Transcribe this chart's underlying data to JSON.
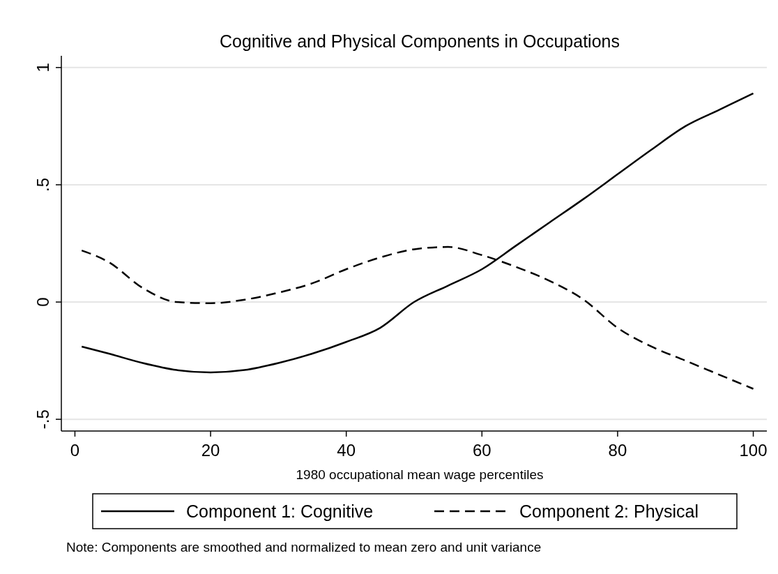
{
  "chart_data": {
    "type": "line",
    "title": "Cognitive and Physical Components in Occupations",
    "xlabel": "1980 occupational mean wage percentiles",
    "x": [
      1,
      5,
      10,
      15,
      20,
      25,
      30,
      35,
      40,
      45,
      50,
      55,
      60,
      65,
      70,
      75,
      80,
      85,
      90,
      95,
      100
    ],
    "series": [
      {
        "name": "Component 1: Cognitive",
        "color": "#000000",
        "line_style": "solid",
        "values": [
          -0.19,
          -0.22,
          -0.26,
          -0.29,
          -0.3,
          -0.29,
          -0.26,
          -0.22,
          -0.17,
          -0.11,
          0.0,
          0.07,
          0.14,
          0.24,
          0.34,
          0.44,
          0.545,
          0.65,
          0.75,
          0.82,
          0.89
        ]
      },
      {
        "name": "Component 2: Physical",
        "color": "#000000",
        "line_style": "dashed",
        "values": [
          0.22,
          0.17,
          0.06,
          0.0,
          -0.005,
          0.01,
          0.04,
          0.08,
          0.14,
          0.19,
          0.225,
          0.235,
          0.2,
          0.15,
          0.09,
          0.01,
          -0.11,
          -0.19,
          -0.25,
          -0.31,
          -0.37
        ]
      }
    ],
    "xlim": [
      -2,
      102
    ],
    "ylim": [
      -0.55,
      1.05
    ],
    "xticks": [
      0,
      20,
      40,
      60,
      80,
      100
    ],
    "yticks": [
      {
        "value": -0.5,
        "label": "-.5"
      },
      0,
      {
        "value": 0.5,
        "label": ".5"
      },
      1
    ],
    "grid": "y",
    "legend": "bottom",
    "annotations": [
      "Note: Components are smoothed and normalized to mean zero and unit variance"
    ]
  }
}
